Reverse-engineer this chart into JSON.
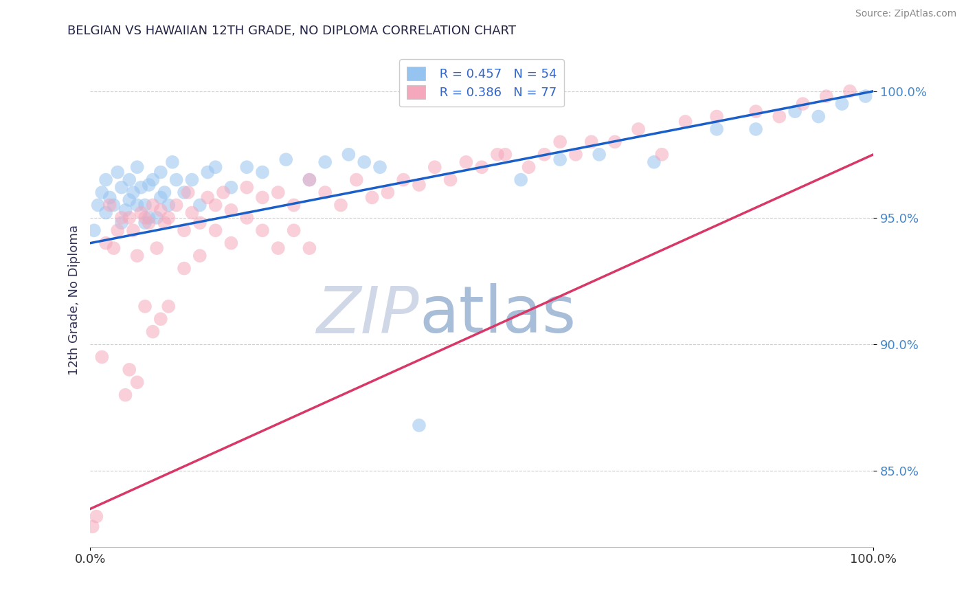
{
  "title": "BELGIAN VS HAWAIIAN 12TH GRADE, NO DIPLOMA CORRELATION CHART",
  "ylabel": "12th Grade, No Diploma",
  "source": "Source: ZipAtlas.com",
  "r_belgian": 0.457,
  "n_belgian": 54,
  "r_hawaiian": 0.386,
  "n_hawaiian": 77,
  "color_belgian": "#96C4F0",
  "color_hawaiian": "#F5A8BC",
  "line_color_belgian": "#1A5FC8",
  "line_color_hawaiian": "#D83868",
  "watermark_zip": "ZIP",
  "watermark_atlas": "atlas",
  "watermark_color_zip": "#D0D8E8",
  "watermark_color_atlas": "#A8BED8",
  "xlim": [
    0,
    100
  ],
  "ylim": [
    82,
    101.5
  ],
  "yticks": [
    85,
    90,
    95,
    100
  ],
  "ytick_labels": [
    "85.0%",
    "90.0%",
    "95.0%",
    "100.0%"
  ],
  "xticks": [
    0,
    100
  ],
  "xtick_labels": [
    "0.0%",
    "100.0%"
  ],
  "grid_color": "#CCCCCC",
  "background_color": "#FFFFFF",
  "belgian_line_y0": 94.0,
  "belgian_line_y1": 100.0,
  "hawaiian_line_y0": 83.5,
  "hawaiian_line_y1": 97.5,
  "belgian_x": [
    0.5,
    1.0,
    1.5,
    2.0,
    2.0,
    2.5,
    3.0,
    3.5,
    4.0,
    4.0,
    4.5,
    5.0,
    5.0,
    5.5,
    6.0,
    6.0,
    6.5,
    7.0,
    7.0,
    7.5,
    7.5,
    8.0,
    8.5,
    9.0,
    9.0,
    9.5,
    10.0,
    10.5,
    11.0,
    12.0,
    13.0,
    14.0,
    15.0,
    16.0,
    18.0,
    20.0,
    22.0,
    25.0,
    28.0,
    30.0,
    33.0,
    35.0,
    42.0,
    55.0,
    60.0,
    65.0,
    72.0,
    80.0,
    85.0,
    90.0,
    93.0,
    96.0,
    99.0,
    37.0
  ],
  "belgian_y": [
    94.5,
    95.5,
    96.0,
    95.2,
    96.5,
    95.8,
    95.5,
    96.8,
    94.8,
    96.2,
    95.3,
    95.7,
    96.5,
    96.0,
    95.5,
    97.0,
    96.2,
    94.8,
    95.5,
    96.3,
    95.0,
    96.5,
    95.0,
    96.8,
    95.8,
    96.0,
    95.5,
    97.2,
    96.5,
    96.0,
    96.5,
    95.5,
    96.8,
    97.0,
    96.2,
    97.0,
    96.8,
    97.3,
    96.5,
    97.2,
    97.5,
    97.2,
    86.8,
    96.5,
    97.3,
    97.5,
    97.2,
    98.5,
    98.5,
    99.2,
    99.0,
    99.5,
    99.8,
    97.0
  ],
  "hawaiian_x": [
    0.3,
    0.8,
    1.5,
    2.0,
    2.5,
    3.0,
    3.5,
    4.0,
    5.0,
    5.5,
    6.0,
    6.5,
    7.0,
    7.5,
    8.0,
    8.5,
    9.0,
    9.5,
    10.0,
    11.0,
    12.0,
    12.5,
    13.0,
    14.0,
    15.0,
    16.0,
    17.0,
    18.0,
    20.0,
    22.0,
    24.0,
    26.0,
    28.0,
    30.0,
    32.0,
    34.0,
    36.0,
    38.0,
    40.0,
    42.0,
    44.0,
    46.0,
    48.0,
    50.0,
    52.0,
    53.0,
    56.0,
    58.0,
    60.0,
    62.0,
    64.0,
    67.0,
    70.0,
    73.0,
    76.0,
    80.0,
    85.0,
    88.0,
    91.0,
    94.0,
    97.0,
    4.5,
    5.0,
    6.0,
    7.0,
    8.0,
    9.0,
    10.0,
    12.0,
    14.0,
    16.0,
    18.0,
    20.0,
    22.0,
    24.0,
    26.0,
    28.0
  ],
  "hawaiian_y": [
    82.8,
    83.2,
    89.5,
    94.0,
    95.5,
    93.8,
    94.5,
    95.0,
    95.0,
    94.5,
    93.5,
    95.2,
    95.0,
    94.8,
    95.5,
    93.8,
    95.3,
    94.8,
    95.0,
    95.5,
    94.5,
    96.0,
    95.2,
    94.8,
    95.8,
    95.5,
    96.0,
    95.3,
    96.2,
    95.8,
    96.0,
    95.5,
    96.5,
    96.0,
    95.5,
    96.5,
    95.8,
    96.0,
    96.5,
    96.3,
    97.0,
    96.5,
    97.2,
    97.0,
    97.5,
    97.5,
    97.0,
    97.5,
    98.0,
    97.5,
    98.0,
    98.0,
    98.5,
    97.5,
    98.8,
    99.0,
    99.2,
    99.0,
    99.5,
    99.8,
    100.0,
    88.0,
    89.0,
    88.5,
    91.5,
    90.5,
    91.0,
    91.5,
    93.0,
    93.5,
    94.5,
    94.0,
    95.0,
    94.5,
    93.8,
    94.5,
    93.8
  ]
}
